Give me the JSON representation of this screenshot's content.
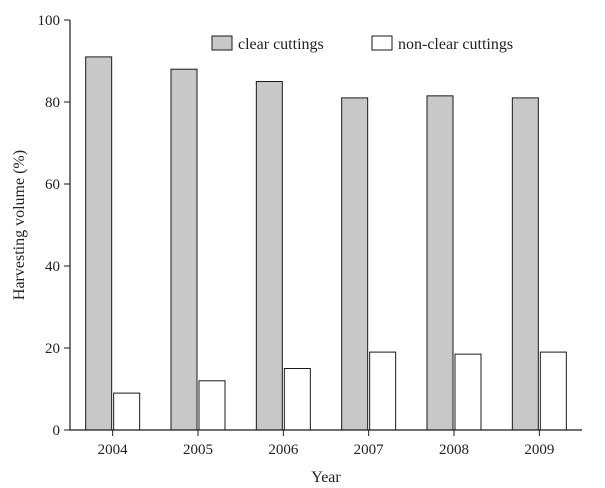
{
  "chart_data": {
    "type": "bar",
    "categories": [
      "2004",
      "2005",
      "2006",
      "2007",
      "2008",
      "2009"
    ],
    "series": [
      {
        "name": "clear cuttings",
        "values": [
          91,
          88,
          85,
          81,
          81.5,
          81
        ],
        "color": "#c8c8c8"
      },
      {
        "name": "non-clear cuttings",
        "values": [
          9,
          12,
          15,
          19,
          18.5,
          19
        ],
        "color": "#ffffff"
      }
    ],
    "xlabel": "Year",
    "ylabel": "Harvesting volume  (%)",
    "ylim": [
      0,
      100
    ],
    "yticks": [
      0,
      20,
      40,
      60,
      80,
      100
    ],
    "grid": false,
    "legend_position": "top-right"
  }
}
